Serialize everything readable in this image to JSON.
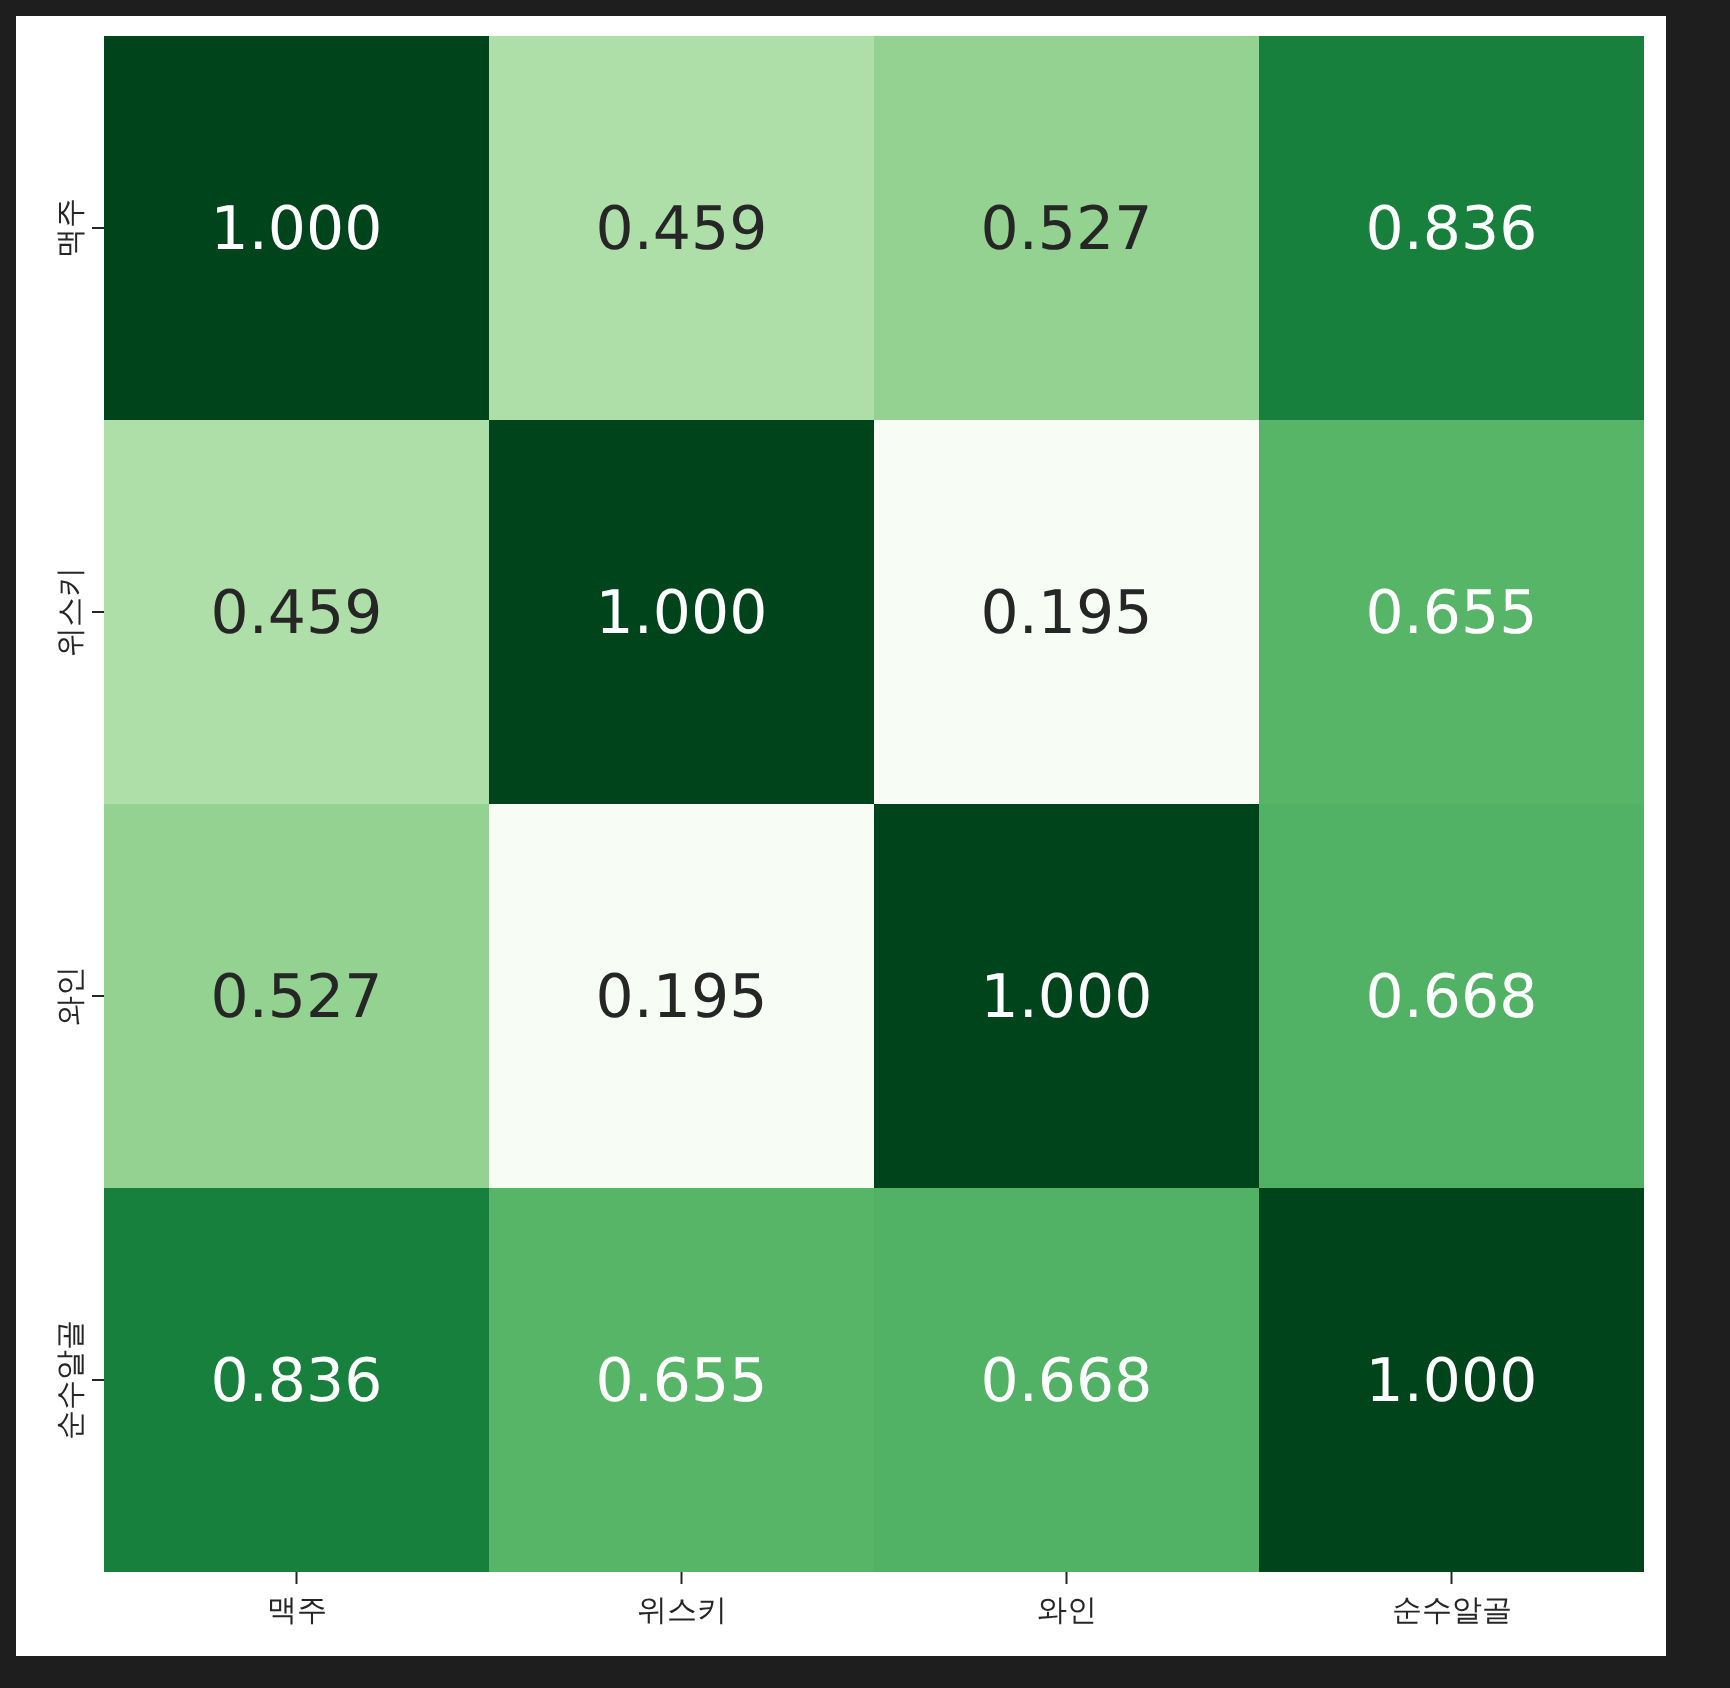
{
  "chart_data": {
    "type": "heatmap",
    "categories": [
      "맥주",
      "위스키",
      "와인",
      "순수알골"
    ],
    "y_categories": [
      "맥주",
      "위스키",
      "와인",
      "순수알골"
    ],
    "cells": [
      [
        1.0,
        0.459,
        0.527,
        0.836
      ],
      [
        0.459,
        1.0,
        0.195,
        0.655
      ],
      [
        0.527,
        0.195,
        1.0,
        0.668
      ],
      [
        0.836,
        0.655,
        0.668,
        1.0
      ]
    ],
    "cell_labels": [
      [
        "1.000",
        "0.459",
        "0.527",
        "0.836"
      ],
      [
        "0.459",
        "1.000",
        "0.195",
        "0.655"
      ],
      [
        "0.527",
        "0.195",
        "1.000",
        "0.668"
      ],
      [
        "0.836",
        "0.655",
        "0.668",
        "1.000"
      ]
    ]
  }
}
